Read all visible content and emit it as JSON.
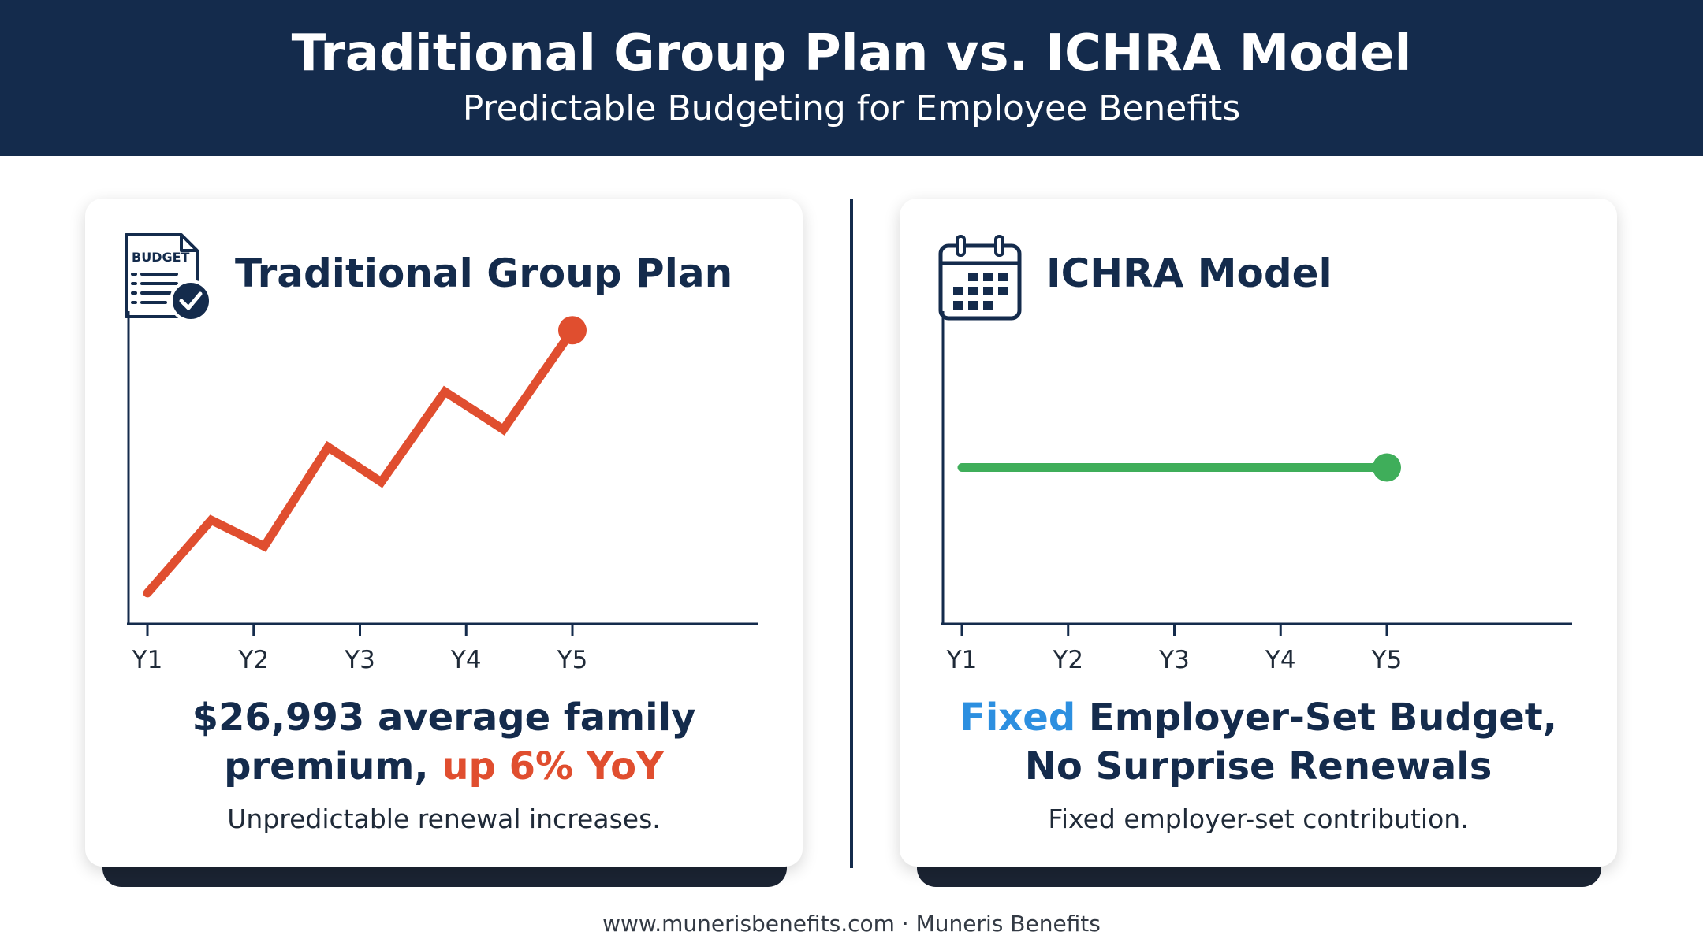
{
  "header": {
    "title": "Traditional Group Plan vs. ICHRA Model",
    "subtitle": "Predictable Budgeting for Employee Benefits"
  },
  "left_card": {
    "title": "Traditional Group Plan",
    "icon": "budget-document-icon",
    "icon_label": "BUDGET",
    "headline_line1": "$26,993 average family",
    "headline_line2_prefix": "premium, ",
    "headline_line2_highlight": "up 6% YoY",
    "note": "Unpredictable renewal increases."
  },
  "right_card": {
    "title": "ICHRA Model",
    "icon": "calendar-icon",
    "headline_highlight": "Fixed",
    "headline_line1_rest": " Employer-Set Budget,",
    "headline_line2": "No Surprise Renewals",
    "note": "Fixed employer-set contribution."
  },
  "footer": {
    "text": "www.munerisbenefits.com · Muneris Benefits"
  },
  "colors": {
    "header_bg": "#142b4c",
    "rising_line": "#e04e2f",
    "flat_line": "#3fae5a",
    "highlight_blue": "#2c8fe0"
  },
  "chart_data": [
    {
      "type": "line",
      "title": "Traditional Group Plan",
      "categories": [
        "Y1",
        "Y2",
        "Y3",
        "Y4",
        "Y5"
      ],
      "x": [
        1,
        1.6,
        2.1,
        2.7,
        3.2,
        3.8,
        4.35,
        5
      ],
      "series": [
        {
          "values": [
            1.0,
            3.5,
            2.6,
            6.0,
            4.8,
            7.9,
            6.6,
            10.0
          ]
        }
      ],
      "xlim": [
        1,
        5
      ],
      "ylim": [
        0,
        10.6
      ],
      "grid": false,
      "end_marker": true
    },
    {
      "type": "line",
      "title": "ICHRA Model",
      "categories": [
        "Y1",
        "Y2",
        "Y3",
        "Y4",
        "Y5"
      ],
      "x": [
        1,
        5
      ],
      "series": [
        {
          "values": [
            5,
            5
          ]
        }
      ],
      "xlim": [
        1,
        5
      ],
      "ylim": [
        0,
        10
      ],
      "grid": false,
      "end_marker": true
    }
  ]
}
